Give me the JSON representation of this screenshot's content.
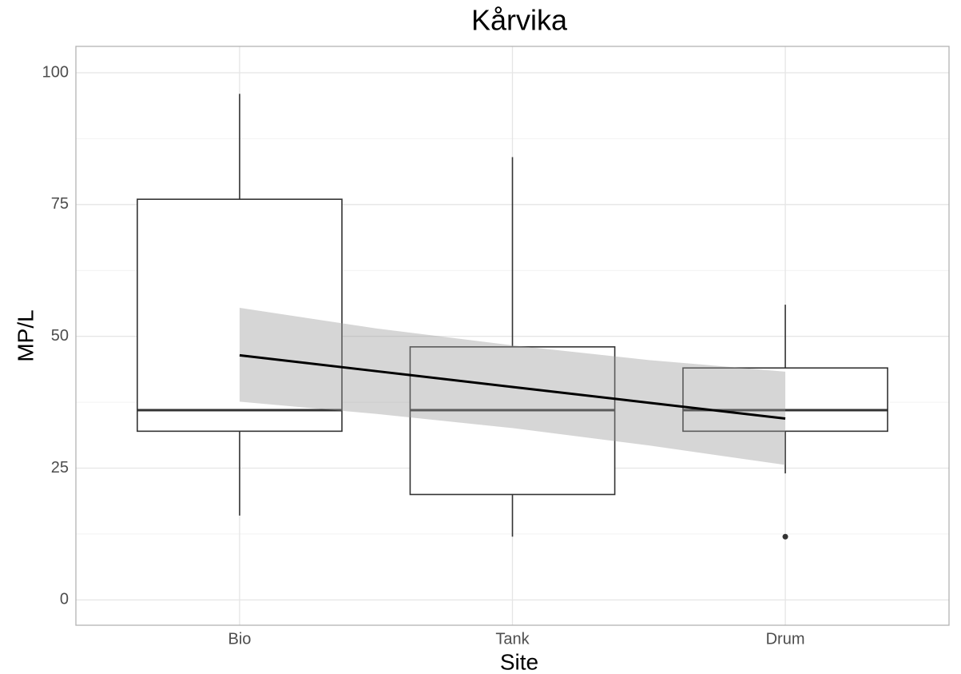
{
  "chart_data": {
    "type": "box",
    "title": "Kårvika",
    "x_label": "Site",
    "y_label": "MP/L",
    "categories": [
      "Bio",
      "Tank",
      "Drum"
    ],
    "boxes": [
      {
        "low": 16,
        "q1": 32,
        "median": 36,
        "q3": 76,
        "high": 96,
        "outliers": []
      },
      {
        "low": 12,
        "q1": 20,
        "median": 36,
        "q3": 48,
        "high": 84,
        "outliers": []
      },
      {
        "low": 24,
        "q1": 32,
        "median": 36,
        "q3": 44,
        "high": 56,
        "outliers": [
          12
        ]
      }
    ],
    "box_color": "#333333",
    "trend": {
      "x": [
        1,
        1.5,
        2,
        2.5,
        3
      ],
      "values": [
        46.4,
        43.4,
        40.4,
        37.4,
        34.4
      ],
      "lower": [
        37.6,
        35.3,
        32.6,
        29.3,
        25.6
      ],
      "upper": [
        55.4,
        51.5,
        48.3,
        45.5,
        43.3
      ],
      "color": "#000000",
      "band_color": "#999999"
    },
    "xlim": [
      0.4,
      3.6
    ],
    "ylim": [
      -4.8,
      105
    ],
    "yticks": [
      0,
      25,
      50,
      75,
      100
    ],
    "minor_yticks": [
      12.5,
      37.5,
      62.5,
      87.5
    ],
    "grid": true
  }
}
